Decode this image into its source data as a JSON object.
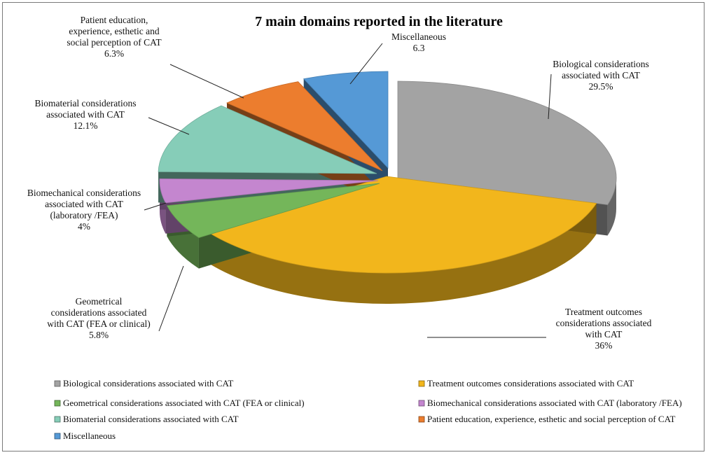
{
  "chart_data": {
    "type": "pie",
    "variant": "3d-exploded",
    "title": "7 main domains reported in the literature",
    "legend_placement": "bottom",
    "slices": [
      {
        "legend": "Biological considerations associated with CAT",
        "label_lines": [
          "Biological considerations",
          "associated with CAT",
          "29.5%"
        ],
        "value": 29.5,
        "color": "#a3a3a3"
      },
      {
        "legend": "Treatment outcomes considerations associated with CAT",
        "label_lines": [
          "Treatment outcomes",
          "considerations associated",
          "with CAT",
          "36%"
        ],
        "value": 36,
        "color": "#f2b61c"
      },
      {
        "legend": "Geometrical considerations associated with CAT (FEA or clinical)",
        "label_lines": [
          "Geometrical",
          "considerations associated",
          "with CAT (FEA or clinical)",
          "5.8%"
        ],
        "value": 5.8,
        "color": "#74b65a"
      },
      {
        "legend": "Biomechanical considerations associated with CAT (laboratory /FEA)",
        "label_lines": [
          "Biomechanical considerations",
          "associated with CAT",
          "(laboratory /FEA)",
          "4%"
        ],
        "value": 4,
        "color": "#c486cf"
      },
      {
        "legend": "Biomaterial considerations associated with CAT",
        "label_lines": [
          "Biomaterial considerations",
          "associated with CAT",
          "12.1%"
        ],
        "value": 12.1,
        "color": "#86cdb8"
      },
      {
        "legend": "Patient education, experience, esthetic and social perception of CAT",
        "label_lines": [
          "Patient education,",
          "experience, esthetic and",
          "social perception of CAT",
          "6.3%"
        ],
        "value": 6.3,
        "color": "#ec7d2e"
      },
      {
        "legend": "Miscellaneous",
        "label_lines": [
          "Miscellaneous",
          "6.3"
        ],
        "value": 6.3,
        "color": "#5599d6"
      }
    ]
  }
}
